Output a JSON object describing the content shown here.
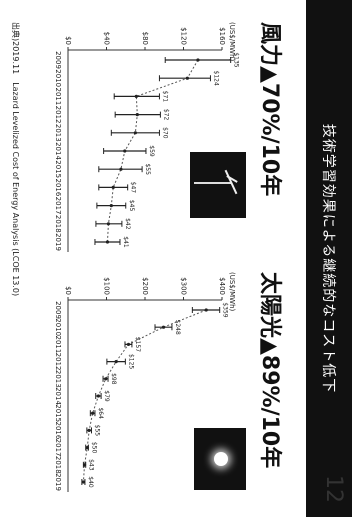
{
  "header": {
    "title": "技術学習効果による継続的なコスト低下"
  },
  "page_number": "12",
  "source": "出典)2019.11　Lazard Levelized Cost of Energy Analysis (LCOE 13.0)",
  "colors": {
    "title_bar": "#111111",
    "ink": "#222222"
  },
  "chart_data": [
    {
      "type": "line",
      "title": "風力▲70%/10年",
      "ylabel": "(US$/MWh)",
      "x": [
        "2009",
        "2010",
        "2011",
        "2012",
        "2013",
        "2014",
        "2015",
        "2016",
        "2017",
        "2018",
        "2019"
      ],
      "ylim": [
        0,
        160
      ],
      "series": [
        {
          "name": "mean",
          "values": [
            135,
            124,
            71,
            72,
            70,
            59,
            55,
            47,
            45,
            42,
            41
          ]
        },
        {
          "name": "low",
          "values": [
            101,
            95,
            48,
            49,
            45,
            37,
            32,
            32,
            30,
            29,
            28
          ]
        },
        {
          "name": "high",
          "values": [
            169,
            148,
            95,
            96,
            95,
            81,
            77,
            62,
            60,
            56,
            54
          ]
        }
      ],
      "data_labels": [
        "$135",
        "$124",
        "$71",
        "$72",
        "$70",
        "$59",
        "$55",
        "$47",
        "$45",
        "$42",
        "$41"
      ],
      "image_icon": "wind-turbine-photo"
    },
    {
      "type": "line",
      "title": "太陽光▲89%/10年",
      "ylabel": "(US$/MWh)",
      "x": [
        "2009",
        "2010",
        "2011",
        "2012",
        "2013",
        "2014",
        "2015",
        "2016",
        "2017",
        "2018",
        "2019"
      ],
      "ylim": [
        0,
        400
      ],
      "series": [
        {
          "name": "mean",
          "values": [
            359,
            248,
            157,
            125,
            98,
            79,
            64,
            55,
            50,
            43,
            40
          ]
        },
        {
          "name": "low",
          "values": [
            323,
            226,
            148,
            101,
            91,
            72,
            58,
            49,
            46,
            40,
            36
          ]
        },
        {
          "name": "high",
          "values": [
            394,
            270,
            166,
            149,
            104,
            86,
            70,
            61,
            53,
            46,
            44
          ]
        }
      ],
      "data_labels": [
        "$359",
        "$248",
        "$157",
        "$125",
        "$98",
        "$79",
        "$64",
        "$55",
        "$50",
        "$43",
        "$40"
      ],
      "image_icon": "sun-photo"
    }
  ]
}
